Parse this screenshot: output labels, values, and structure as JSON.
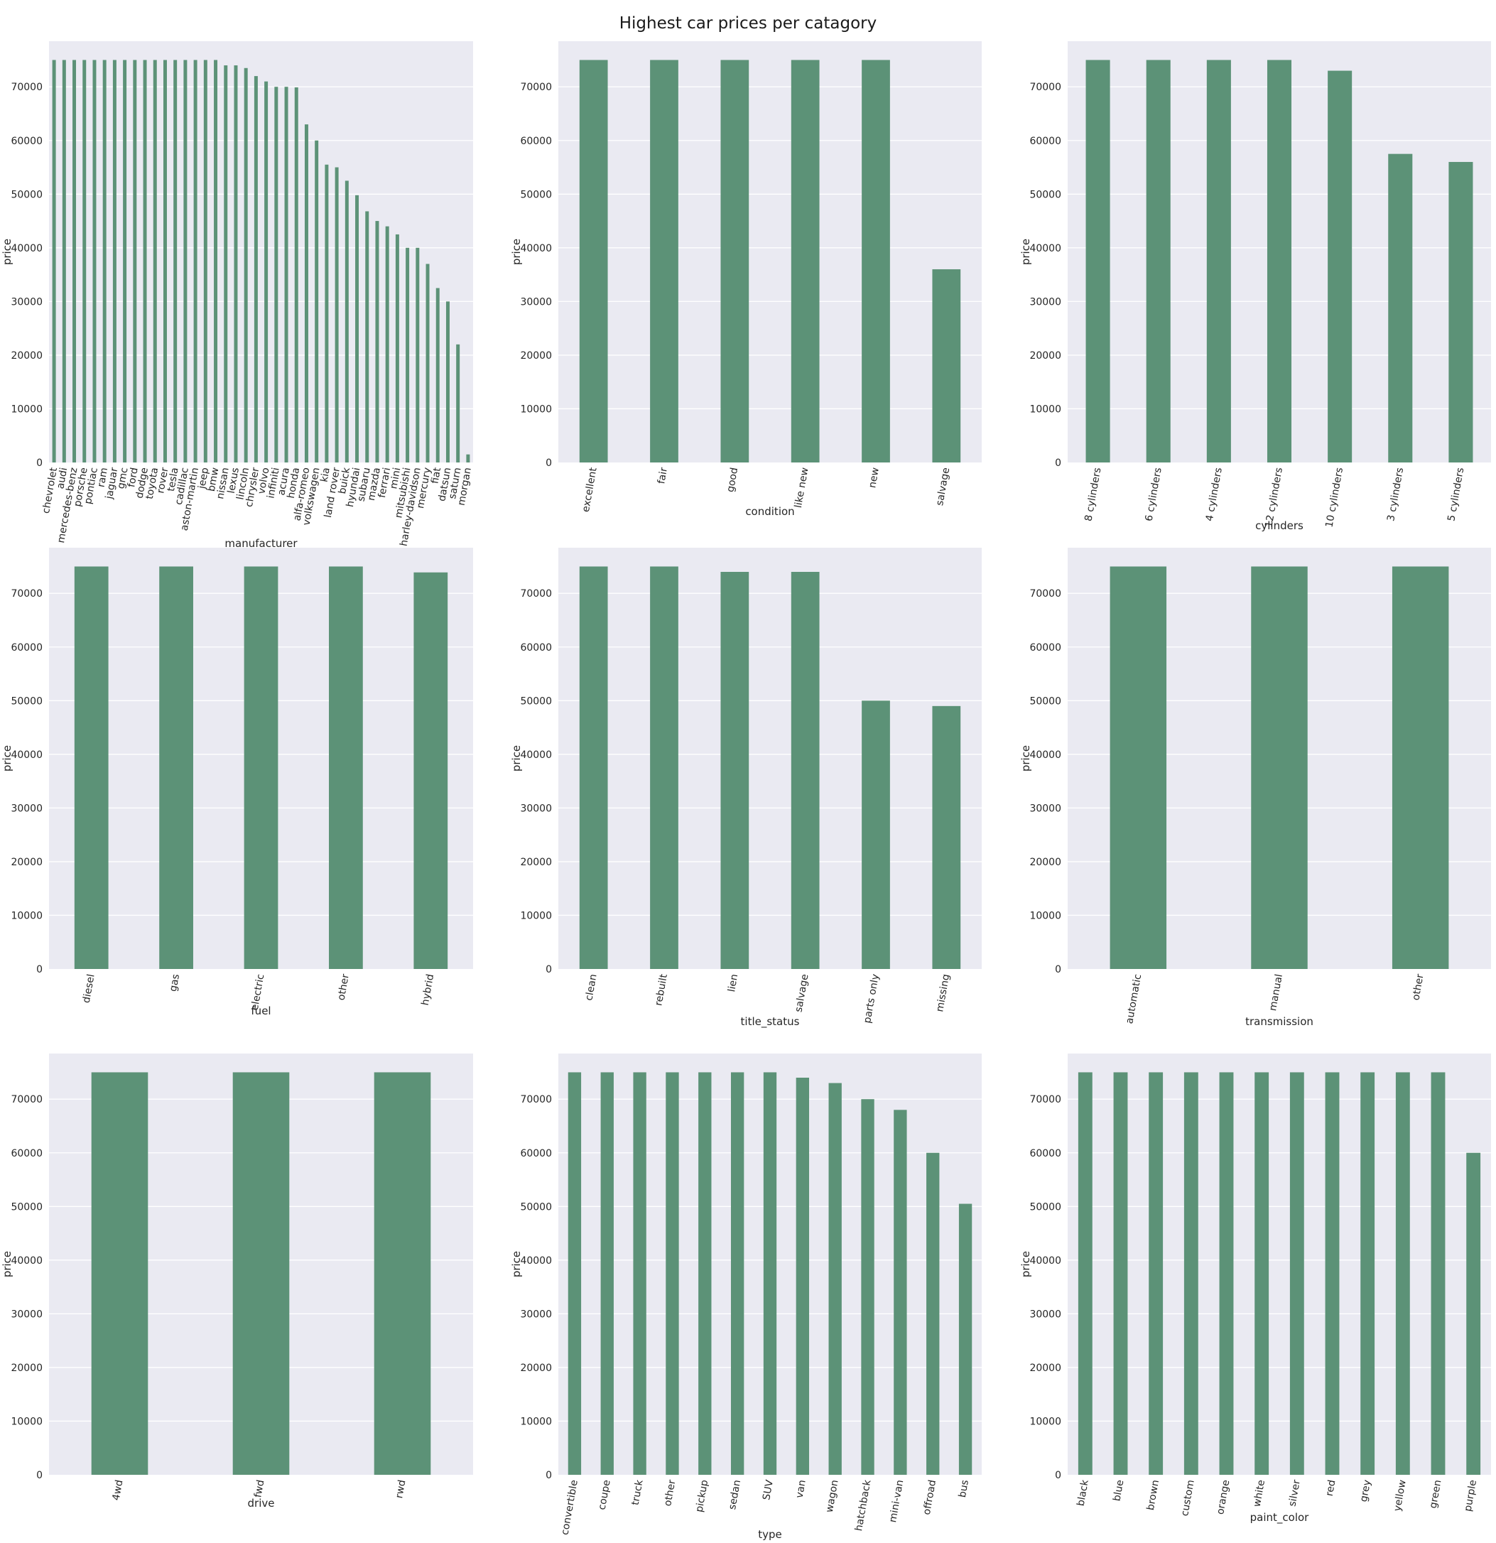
{
  "title": "Highest car prices per catagory",
  "colors": {
    "bar": "#5c9277",
    "plot_background": "#eaeaf2",
    "grid": "#ffffff"
  },
  "chart_data": [
    {
      "type": "bar",
      "xlabel": "manufacturer",
      "ylabel": "price",
      "ylim": [
        0,
        78500
      ],
      "yticks": [
        0,
        10000,
        20000,
        30000,
        40000,
        50000,
        60000,
        70000
      ],
      "grid": true,
      "categories": [
        "chevrolet",
        "audi",
        "mercedes-benz",
        "porsche",
        "pontiac",
        "ram",
        "jaguar",
        "gmc",
        "ford",
        "dodge",
        "toyota",
        "rover",
        "tesla",
        "cadillac",
        "aston-martin",
        "jeep",
        "bmw",
        "nissan",
        "lexus",
        "lincoln",
        "chrysler",
        "volvo",
        "infiniti",
        "acura",
        "honda",
        "alfa-romeo",
        "volkswagen",
        "kia",
        "land rover",
        "buick",
        "hyundai",
        "subaru",
        "mazda",
        "ferrari",
        "mini",
        "mitsubishi",
        "harley-davidson",
        "mercury",
        "fiat",
        "datsun",
        "saturn",
        "morgan"
      ],
      "values": [
        75000,
        75000,
        75000,
        75000,
        75000,
        75000,
        75000,
        75000,
        75000,
        75000,
        75000,
        75000,
        75000,
        75000,
        75000,
        75000,
        75000,
        74000,
        74000,
        73500,
        72000,
        71000,
        70000,
        70000,
        69900,
        63000,
        60000,
        55500,
        55000,
        52500,
        49800,
        46800,
        45000,
        44000,
        42500,
        40000,
        40000,
        37000,
        32500,
        30000,
        22000,
        1500
      ]
    },
    {
      "type": "bar",
      "xlabel": "condition",
      "ylabel": "price",
      "ylim": [
        0,
        78500
      ],
      "yticks": [
        0,
        10000,
        20000,
        30000,
        40000,
        50000,
        60000,
        70000
      ],
      "grid": true,
      "categories": [
        "excellent",
        "fair",
        "good",
        "like new",
        "new",
        "salvage"
      ],
      "values": [
        75000,
        75000,
        75000,
        75000,
        75000,
        36000
      ]
    },
    {
      "type": "bar",
      "xlabel": "cylinders",
      "ylabel": "price",
      "ylim": [
        0,
        78500
      ],
      "yticks": [
        0,
        10000,
        20000,
        30000,
        40000,
        50000,
        60000,
        70000
      ],
      "grid": true,
      "categories": [
        "8 cylinders",
        "6 cylinders",
        "4 cylinders",
        "12 cylinders",
        "10 cylinders",
        "3 cylinders",
        "5 cylinders"
      ],
      "values": [
        75000,
        75000,
        75000,
        75000,
        73000,
        57500,
        56000
      ]
    },
    {
      "type": "bar",
      "xlabel": "fuel",
      "ylabel": "price",
      "ylim": [
        0,
        78500
      ],
      "yticks": [
        0,
        10000,
        20000,
        30000,
        40000,
        50000,
        60000,
        70000
      ],
      "grid": true,
      "categories": [
        "diesel",
        "gas",
        "electric",
        "other",
        "hybrid"
      ],
      "values": [
        75000,
        75000,
        75000,
        75000,
        73900
      ]
    },
    {
      "type": "bar",
      "xlabel": "title_status",
      "ylabel": "price",
      "ylim": [
        0,
        78500
      ],
      "yticks": [
        0,
        10000,
        20000,
        30000,
        40000,
        50000,
        60000,
        70000
      ],
      "grid": true,
      "categories": [
        "clean",
        "rebuilt",
        "lien",
        "salvage",
        "parts only",
        "missing"
      ],
      "values": [
        75000,
        75000,
        74000,
        74000,
        50000,
        49000
      ]
    },
    {
      "type": "bar",
      "xlabel": "transmission",
      "ylabel": "price",
      "ylim": [
        0,
        78500
      ],
      "yticks": [
        0,
        10000,
        20000,
        30000,
        40000,
        50000,
        60000,
        70000
      ],
      "grid": true,
      "categories": [
        "automatic",
        "manual",
        "other"
      ],
      "values": [
        75000,
        75000,
        75000
      ]
    },
    {
      "type": "bar",
      "xlabel": "drive",
      "ylabel": "price",
      "ylim": [
        0,
        78500
      ],
      "yticks": [
        0,
        10000,
        20000,
        30000,
        40000,
        50000,
        60000,
        70000
      ],
      "grid": true,
      "categories": [
        "4wd",
        "fwd",
        "rwd"
      ],
      "values": [
        75000,
        75000,
        75000
      ]
    },
    {
      "type": "bar",
      "xlabel": "type",
      "ylabel": "price",
      "ylim": [
        0,
        78500
      ],
      "yticks": [
        0,
        10000,
        20000,
        30000,
        40000,
        50000,
        60000,
        70000
      ],
      "grid": true,
      "categories": [
        "convertible",
        "coupe",
        "truck",
        "other",
        "pickup",
        "sedan",
        "SUV",
        "van",
        "wagon",
        "hatchback",
        "mini-van",
        "offroad",
        "bus"
      ],
      "values": [
        75000,
        75000,
        75000,
        75000,
        75000,
        75000,
        75000,
        74000,
        73000,
        70000,
        68000,
        60000,
        50500
      ]
    },
    {
      "type": "bar",
      "xlabel": "paint_color",
      "ylabel": "price",
      "ylim": [
        0,
        78500
      ],
      "yticks": [
        0,
        10000,
        20000,
        30000,
        40000,
        50000,
        60000,
        70000
      ],
      "grid": true,
      "categories": [
        "black",
        "blue",
        "brown",
        "custom",
        "orange",
        "white",
        "silver",
        "red",
        "grey",
        "yellow",
        "green",
        "purple"
      ],
      "values": [
        75000,
        75000,
        75000,
        75000,
        75000,
        75000,
        75000,
        75000,
        75000,
        75000,
        75000,
        60000
      ]
    }
  ]
}
